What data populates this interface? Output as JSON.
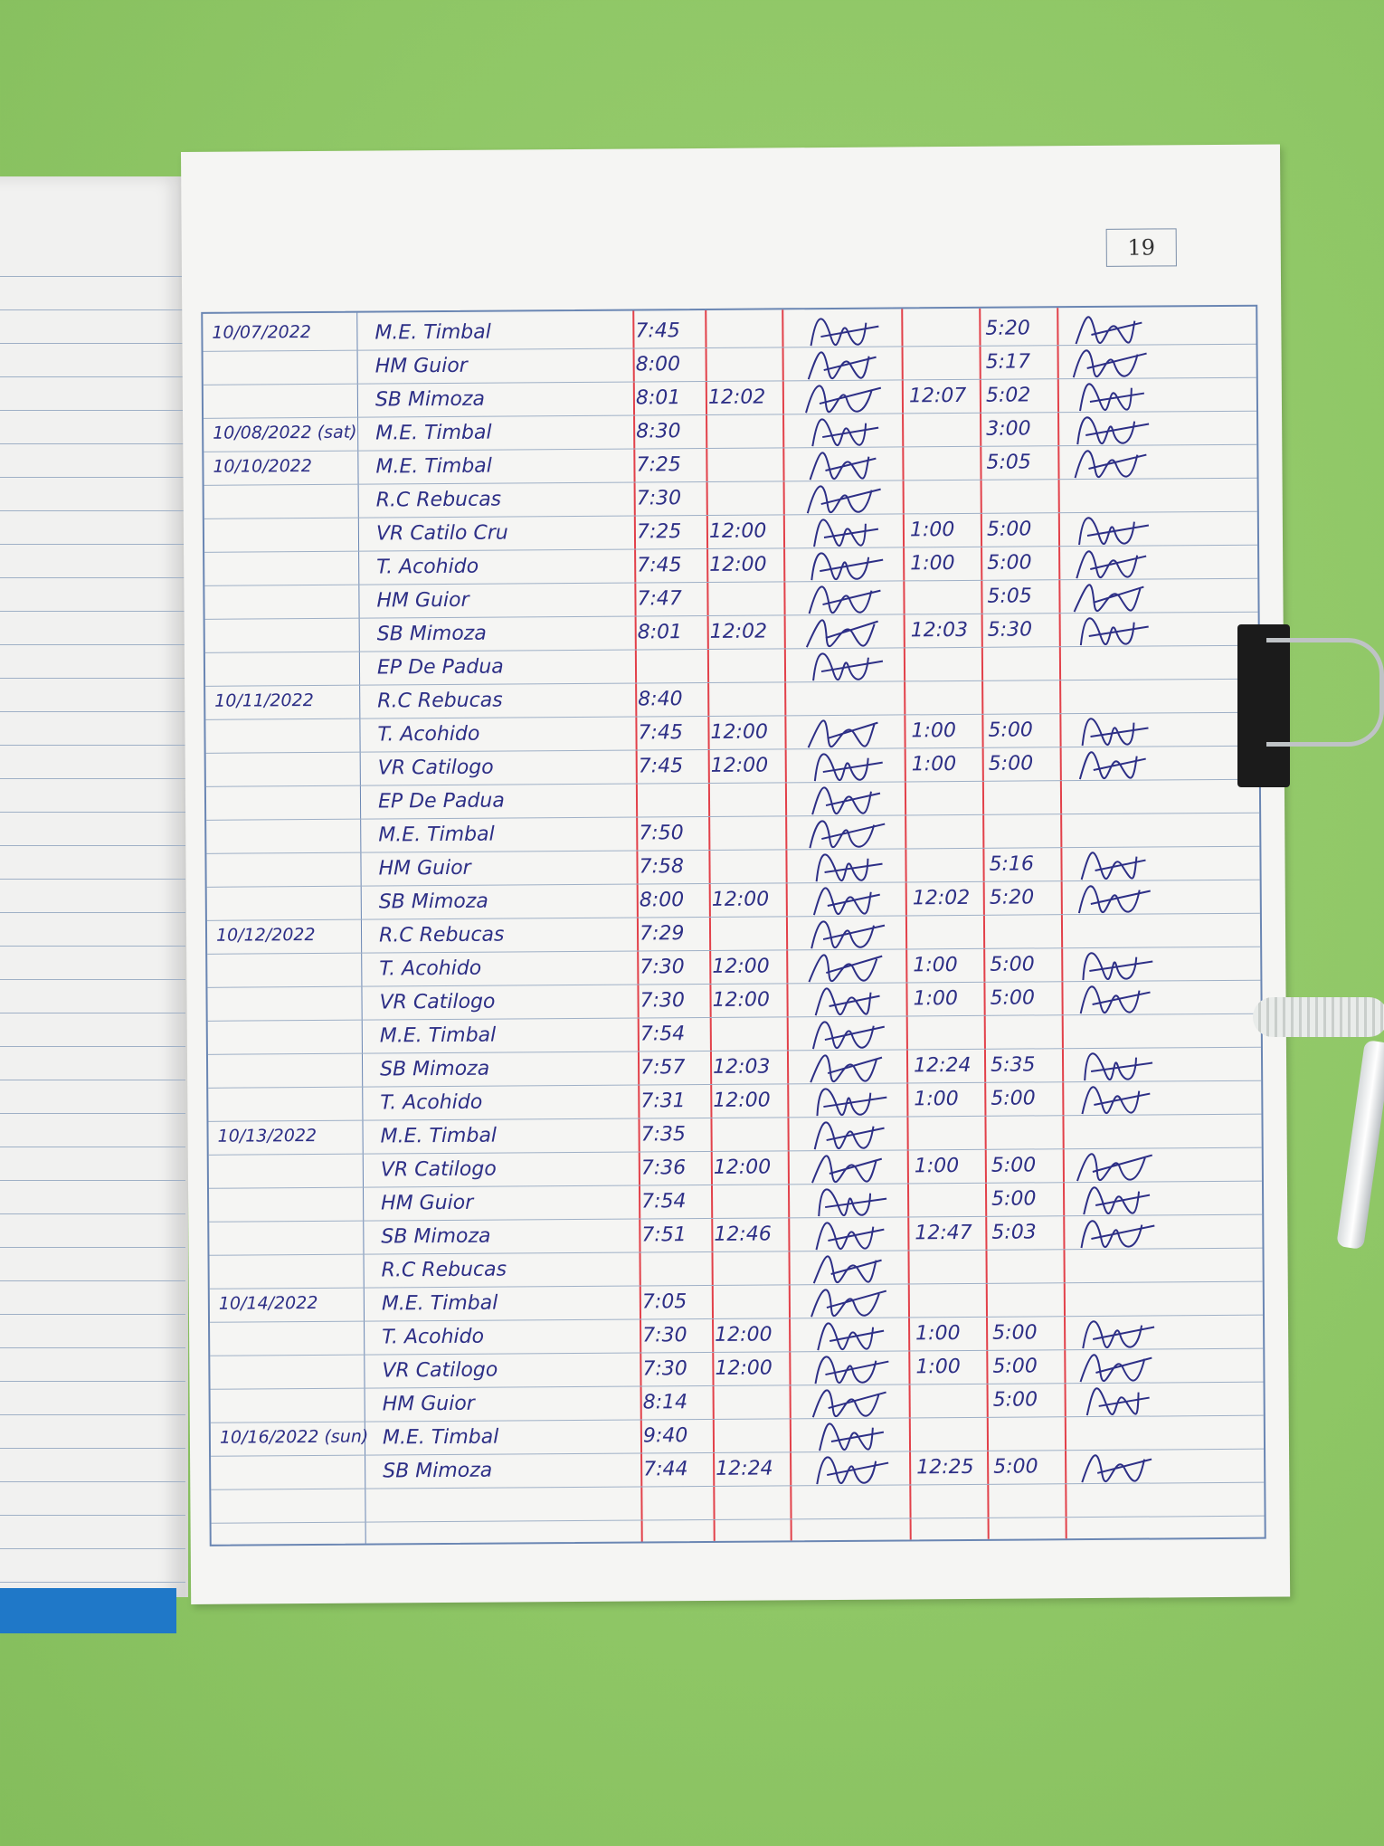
{
  "notebook": {
    "page_number": "19",
    "ink_color": "#2d2f86",
    "margin_line_color": "#e2414a",
    "rule_color": "#9fb0c6",
    "background_color": "#8fc766"
  },
  "log": {
    "rows": [
      {
        "date": "10/07/2022",
        "name": "M.E. Timbal",
        "in_am": "7:45",
        "out_am": "",
        "sig_am": true,
        "in_pm": "",
        "out_pm": "5:20",
        "sig_pm": true
      },
      {
        "date": "",
        "name": "HM Guior",
        "in_am": "8:00",
        "out_am": "",
        "sig_am": true,
        "in_pm": "",
        "out_pm": "5:17",
        "sig_pm": true
      },
      {
        "date": "",
        "name": "SB Mimoza",
        "in_am": "8:01",
        "out_am": "12:02",
        "sig_am": true,
        "in_pm": "12:07",
        "out_pm": "5:02",
        "sig_pm": true
      },
      {
        "date": "10/08/2022 (sat)",
        "name": "M.E. Timbal",
        "in_am": "8:30",
        "out_am": "",
        "sig_am": true,
        "in_pm": "",
        "out_pm": "3:00",
        "sig_pm": true
      },
      {
        "date": "10/10/2022",
        "name": "M.E. Timbal",
        "in_am": "7:25",
        "out_am": "",
        "sig_am": true,
        "in_pm": "",
        "out_pm": "5:05",
        "sig_pm": true
      },
      {
        "date": "",
        "name": "R.C Rebucas",
        "in_am": "7:30",
        "out_am": "",
        "sig_am": true,
        "in_pm": "",
        "out_pm": "",
        "sig_pm": false
      },
      {
        "date": "",
        "name": "VR Catilo Cru",
        "in_am": "7:25",
        "out_am": "12:00",
        "sig_am": true,
        "in_pm": "1:00",
        "out_pm": "5:00",
        "sig_pm": true
      },
      {
        "date": "",
        "name": "T. Acohido",
        "in_am": "7:45",
        "out_am": "12:00",
        "sig_am": true,
        "in_pm": "1:00",
        "out_pm": "5:00",
        "sig_pm": true
      },
      {
        "date": "",
        "name": "HM Guior",
        "in_am": "7:47",
        "out_am": "",
        "sig_am": true,
        "in_pm": "",
        "out_pm": "5:05",
        "sig_pm": true
      },
      {
        "date": "",
        "name": "SB Mimoza",
        "in_am": "8:01",
        "out_am": "12:02",
        "sig_am": true,
        "in_pm": "12:03",
        "out_pm": "5:30",
        "sig_pm": true
      },
      {
        "date": "",
        "name": "EP De Padua",
        "in_am": "",
        "out_am": "",
        "sig_am": true,
        "in_pm": "",
        "out_pm": "",
        "sig_pm": false
      },
      {
        "date": "10/11/2022",
        "name": "R.C Rebucas",
        "in_am": "8:40",
        "out_am": "",
        "sig_am": false,
        "in_pm": "",
        "out_pm": "",
        "sig_pm": false
      },
      {
        "date": "",
        "name": "T. Acohido",
        "in_am": "7:45",
        "out_am": "12:00",
        "sig_am": true,
        "in_pm": "1:00",
        "out_pm": "5:00",
        "sig_pm": true
      },
      {
        "date": "",
        "name": "VR Catilogo",
        "in_am": "7:45",
        "out_am": "12:00",
        "sig_am": true,
        "in_pm": "1:00",
        "out_pm": "5:00",
        "sig_pm": true
      },
      {
        "date": "",
        "name": "EP De Padua",
        "in_am": "",
        "out_am": "",
        "sig_am": true,
        "in_pm": "",
        "out_pm": "",
        "sig_pm": false
      },
      {
        "date": "",
        "name": "M.E. Timbal",
        "in_am": "7:50",
        "out_am": "",
        "sig_am": true,
        "in_pm": "",
        "out_pm": "",
        "sig_pm": false
      },
      {
        "date": "",
        "name": "HM Guior",
        "in_am": "7:58",
        "out_am": "",
        "sig_am": true,
        "in_pm": "",
        "out_pm": "5:16",
        "sig_pm": true
      },
      {
        "date": "",
        "name": "SB Mimoza",
        "in_am": "8:00",
        "out_am": "12:00",
        "sig_am": true,
        "in_pm": "12:02",
        "out_pm": "5:20",
        "sig_pm": true
      },
      {
        "date": "10/12/2022",
        "name": "R.C Rebucas",
        "in_am": "7:29",
        "out_am": "",
        "sig_am": true,
        "in_pm": "",
        "out_pm": "",
        "sig_pm": false
      },
      {
        "date": "",
        "name": "T. Acohido",
        "in_am": "7:30",
        "out_am": "12:00",
        "sig_am": true,
        "in_pm": "1:00",
        "out_pm": "5:00",
        "sig_pm": true
      },
      {
        "date": "",
        "name": "VR Catilogo",
        "in_am": "7:30",
        "out_am": "12:00",
        "sig_am": true,
        "in_pm": "1:00",
        "out_pm": "5:00",
        "sig_pm": true
      },
      {
        "date": "",
        "name": "M.E. Timbal",
        "in_am": "7:54",
        "out_am": "",
        "sig_am": true,
        "in_pm": "",
        "out_pm": "",
        "sig_pm": false
      },
      {
        "date": "",
        "name": "SB Mimoza",
        "in_am": "7:57",
        "out_am": "12:03",
        "sig_am": true,
        "in_pm": "12:24",
        "out_pm": "5:35",
        "sig_pm": true
      },
      {
        "date": "",
        "name": "T. Acohido",
        "in_am": "7:31",
        "out_am": "12:00",
        "sig_am": true,
        "in_pm": "1:00",
        "out_pm": "5:00",
        "sig_pm": true
      },
      {
        "date": "10/13/2022",
        "name": "M.E. Timbal",
        "in_am": "7:35",
        "out_am": "",
        "sig_am": true,
        "in_pm": "",
        "out_pm": "",
        "sig_pm": false
      },
      {
        "date": "",
        "name": "VR Catilogo",
        "in_am": "7:36",
        "out_am": "12:00",
        "sig_am": true,
        "in_pm": "1:00",
        "out_pm": "5:00",
        "sig_pm": true
      },
      {
        "date": "",
        "name": "HM Guior",
        "in_am": "7:54",
        "out_am": "",
        "sig_am": true,
        "in_pm": "",
        "out_pm": "5:00",
        "sig_pm": true
      },
      {
        "date": "",
        "name": "SB Mimoza",
        "in_am": "7:51",
        "out_am": "12:46",
        "sig_am": true,
        "in_pm": "12:47",
        "out_pm": "5:03",
        "sig_pm": true
      },
      {
        "date": "",
        "name": "R.C Rebucas",
        "in_am": "",
        "out_am": "",
        "sig_am": true,
        "in_pm": "",
        "out_pm": "",
        "sig_pm": false
      },
      {
        "date": "10/14/2022",
        "name": "M.E. Timbal",
        "in_am": "7:05",
        "out_am": "",
        "sig_am": true,
        "in_pm": "",
        "out_pm": "",
        "sig_pm": false
      },
      {
        "date": "",
        "name": "T. Acohido",
        "in_am": "7:30",
        "out_am": "12:00",
        "sig_am": true,
        "in_pm": "1:00",
        "out_pm": "5:00",
        "sig_pm": true
      },
      {
        "date": "",
        "name": "VR Catilogo",
        "in_am": "7:30",
        "out_am": "12:00",
        "sig_am": true,
        "in_pm": "1:00",
        "out_pm": "5:00",
        "sig_pm": true
      },
      {
        "date": "",
        "name": "HM Guior",
        "in_am": "8:14",
        "out_am": "",
        "sig_am": true,
        "in_pm": "",
        "out_pm": "5:00",
        "sig_pm": true
      },
      {
        "date": "10/16/2022 (sun)",
        "name": "M.E. Timbal",
        "in_am": "9:40",
        "out_am": "",
        "sig_am": true,
        "in_pm": "",
        "out_pm": "",
        "sig_pm": false
      },
      {
        "date": "",
        "name": "SB Mimoza",
        "in_am": "7:44",
        "out_am": "12:24",
        "sig_am": true,
        "in_pm": "12:25",
        "out_pm": "5:00",
        "sig_pm": true
      }
    ]
  }
}
